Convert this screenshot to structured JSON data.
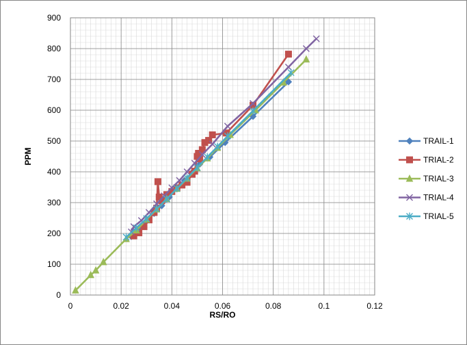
{
  "chart_data": {
    "type": "scatter",
    "title": "",
    "xlabel": "RS/RO",
    "ylabel": "PPM",
    "xlim": [
      0,
      0.12
    ],
    "ylim": [
      0,
      900
    ],
    "x_major_ticks": [
      0,
      0.02,
      0.04,
      0.06,
      0.08,
      0.1,
      0.12
    ],
    "x_tick_labels": [
      "0",
      "0.02",
      "0.04",
      "0.06",
      "0.08",
      "0.1",
      "0.12"
    ],
    "y_major_ticks": [
      0,
      100,
      200,
      300,
      400,
      500,
      600,
      700,
      800,
      900
    ],
    "y_tick_labels": [
      "0",
      "100",
      "200",
      "300",
      "400",
      "500",
      "600",
      "700",
      "800",
      "900"
    ],
    "grid": "major and minor",
    "legend_position": "right",
    "series": [
      {
        "name": "TRAIL-1",
        "color": "#4F81BD",
        "marker": "diamond",
        "points": [
          [
            0.024,
            190
          ],
          [
            0.027,
            215
          ],
          [
            0.03,
            240
          ],
          [
            0.033,
            265
          ],
          [
            0.036,
            290
          ],
          [
            0.039,
            318
          ],
          [
            0.042,
            345
          ],
          [
            0.045,
            372
          ],
          [
            0.048,
            398
          ],
          [
            0.051,
            425
          ],
          [
            0.055,
            448
          ],
          [
            0.061,
            495
          ],
          [
            0.072,
            580
          ],
          [
            0.086,
            692
          ]
        ]
      },
      {
        "name": "TRIAL-2",
        "color": "#C0504D",
        "marker": "square",
        "points": [
          [
            0.025,
            192
          ],
          [
            0.027,
            202
          ],
          [
            0.029,
            222
          ],
          [
            0.031,
            244
          ],
          [
            0.033,
            268
          ],
          [
            0.034,
            282
          ],
          [
            0.0345,
            368
          ],
          [
            0.035,
            318
          ],
          [
            0.036,
            306
          ],
          [
            0.038,
            326
          ],
          [
            0.04,
            336
          ],
          [
            0.042,
            348
          ],
          [
            0.044,
            357
          ],
          [
            0.046,
            366
          ],
          [
            0.048,
            392
          ],
          [
            0.049,
            402
          ],
          [
            0.05,
            450
          ],
          [
            0.0505,
            460
          ],
          [
            0.051,
            442
          ],
          [
            0.052,
            472
          ],
          [
            0.053,
            495
          ],
          [
            0.0545,
            502
          ],
          [
            0.056,
            520
          ],
          [
            0.0615,
            526
          ],
          [
            0.072,
            616
          ],
          [
            0.086,
            782
          ]
        ]
      },
      {
        "name": "TRIAL-3",
        "color": "#9BBB59",
        "marker": "triangle",
        "points": [
          [
            0.002,
            15
          ],
          [
            0.008,
            65
          ],
          [
            0.01,
            80
          ],
          [
            0.013,
            107
          ],
          [
            0.022,
            182
          ],
          [
            0.026,
            210
          ],
          [
            0.03,
            245
          ],
          [
            0.034,
            278
          ],
          [
            0.038,
            312
          ],
          [
            0.042,
            345
          ],
          [
            0.046,
            378
          ],
          [
            0.05,
            412
          ],
          [
            0.054,
            444
          ],
          [
            0.058,
            478
          ],
          [
            0.063,
            520
          ],
          [
            0.073,
            600
          ],
          [
            0.084,
            690
          ],
          [
            0.093,
            765
          ]
        ]
      },
      {
        "name": "TRIAL-4",
        "color": "#8064A2",
        "marker": "x",
        "points": [
          [
            0.024,
            205
          ],
          [
            0.025,
            222
          ],
          [
            0.028,
            242
          ],
          [
            0.031,
            268
          ],
          [
            0.034,
            296
          ],
          [
            0.037,
            322
          ],
          [
            0.04,
            348
          ],
          [
            0.043,
            372
          ],
          [
            0.046,
            400
          ],
          [
            0.049,
            428
          ],
          [
            0.052,
            456
          ],
          [
            0.056,
            490
          ],
          [
            0.062,
            548
          ],
          [
            0.072,
            622
          ],
          [
            0.086,
            740
          ],
          [
            0.093,
            800
          ],
          [
            0.097,
            832
          ]
        ]
      },
      {
        "name": "TRIAL-5",
        "color": "#4BACC6",
        "marker": "star",
        "points": [
          [
            0.022,
            188
          ],
          [
            0.026,
            218
          ],
          [
            0.03,
            248
          ],
          [
            0.034,
            280
          ],
          [
            0.038,
            312
          ],
          [
            0.042,
            346
          ],
          [
            0.046,
            380
          ],
          [
            0.05,
            414
          ],
          [
            0.054,
            448
          ],
          [
            0.058,
            482
          ],
          [
            0.062,
            516
          ],
          [
            0.072,
            598
          ],
          [
            0.087,
            722
          ]
        ]
      }
    ]
  }
}
